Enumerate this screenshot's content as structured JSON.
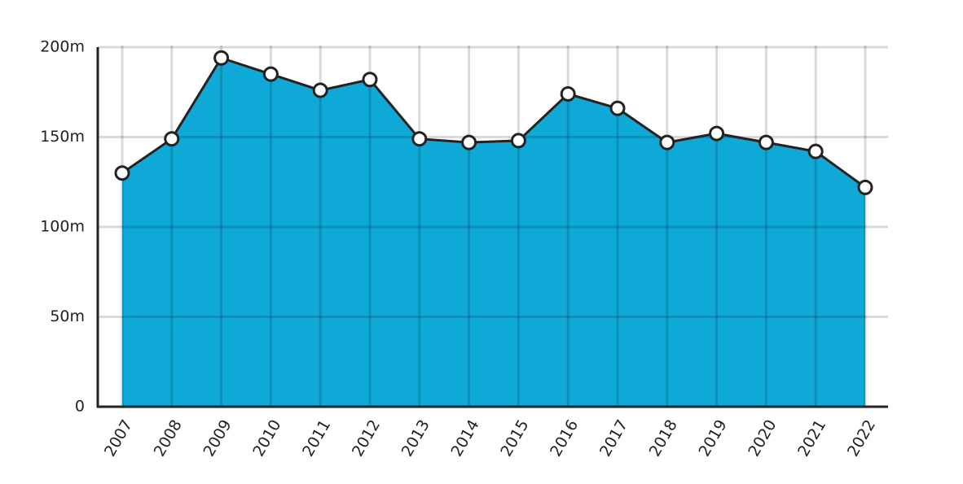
{
  "chart_data": {
    "type": "area",
    "categories": [
      "2007",
      "2008",
      "2009",
      "2010",
      "2011",
      "2012",
      "2013",
      "2014",
      "2015",
      "2016",
      "2017",
      "2018",
      "2019",
      "2020",
      "2021",
      "2022"
    ],
    "values": [
      130,
      149,
      194,
      185,
      176,
      182,
      149,
      147,
      148,
      174,
      166,
      147,
      152,
      147,
      142,
      122
    ],
    "color": "#0ea9d6",
    "line_color": "#222222",
    "ylim": [
      0,
      200
    ],
    "yticks": [
      0,
      {
        "value": 50,
        "label": "50m"
      },
      {
        "value": 100,
        "label": "100m"
      },
      {
        "value": 150,
        "label": "150m"
      },
      {
        "value": 200,
        "label": "200m"
      }
    ],
    "grid": true
  }
}
